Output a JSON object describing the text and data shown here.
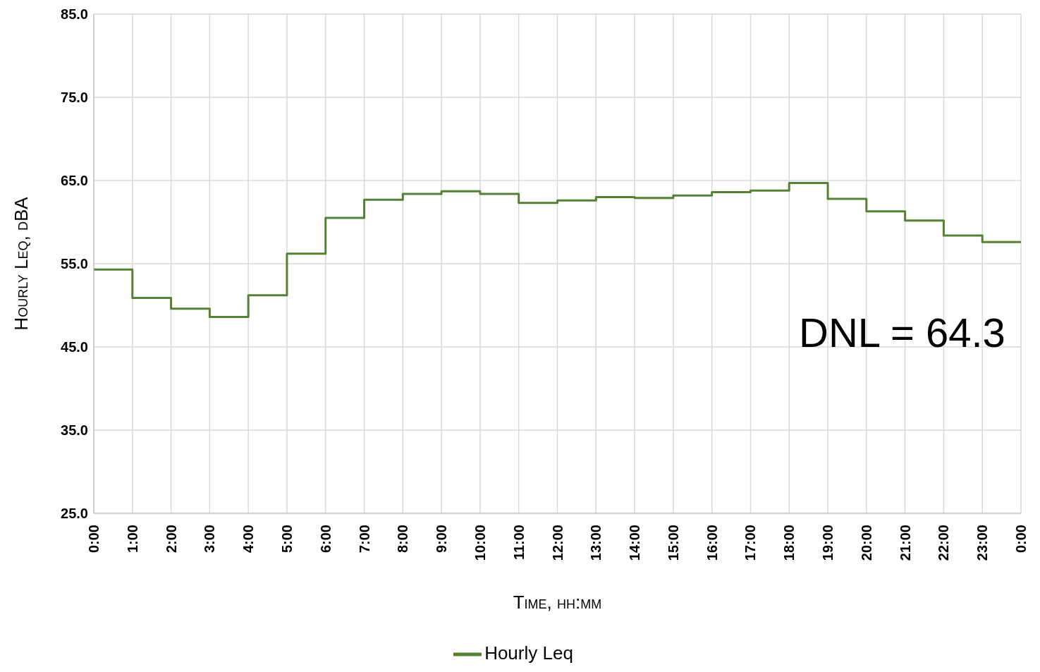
{
  "chart_data": {
    "type": "step",
    "xlabel": "Time, hh:mm",
    "ylabel": "Hourly Leq,  dBA",
    "x": [
      0,
      1,
      2,
      3,
      4,
      5,
      6,
      7,
      8,
      9,
      10,
      11,
      12,
      13,
      14,
      15,
      16,
      17,
      18,
      19,
      20,
      21,
      22,
      23,
      24
    ],
    "series": [
      {
        "name": "Hourly Leq",
        "color": "#548235",
        "values": [
          54.3,
          50.9,
          49.6,
          48.6,
          51.2,
          56.2,
          60.5,
          62.7,
          63.4,
          63.7,
          63.4,
          62.3,
          62.6,
          63.0,
          62.9,
          63.2,
          63.6,
          63.8,
          64.7,
          62.8,
          61.3,
          60.2,
          58.4,
          57.6,
          57.6
        ]
      }
    ],
    "xlim": [
      0,
      24
    ],
    "xticks": [
      {
        "value": 0,
        "label": "0:00"
      },
      {
        "value": 1,
        "label": "1:00"
      },
      {
        "value": 2,
        "label": "2:00"
      },
      {
        "value": 3,
        "label": "3:00"
      },
      {
        "value": 4,
        "label": "4:00"
      },
      {
        "value": 5,
        "label": "5:00"
      },
      {
        "value": 6,
        "label": "6:00"
      },
      {
        "value": 7,
        "label": "7:00"
      },
      {
        "value": 8,
        "label": "8:00"
      },
      {
        "value": 9,
        "label": "9:00"
      },
      {
        "value": 10,
        "label": "10:00"
      },
      {
        "value": 11,
        "label": "11:00"
      },
      {
        "value": 12,
        "label": "12:00"
      },
      {
        "value": 13,
        "label": "13:00"
      },
      {
        "value": 14,
        "label": "14:00"
      },
      {
        "value": 15,
        "label": "15:00"
      },
      {
        "value": 16,
        "label": "16:00"
      },
      {
        "value": 17,
        "label": "17:00"
      },
      {
        "value": 18,
        "label": "18:00"
      },
      {
        "value": 19,
        "label": "19:00"
      },
      {
        "value": 20,
        "label": "20:00"
      },
      {
        "value": 21,
        "label": "21:00"
      },
      {
        "value": 22,
        "label": "22:00"
      },
      {
        "value": 23,
        "label": "23:00"
      },
      {
        "value": 24,
        "label": "0:00"
      }
    ],
    "ylim": [
      25,
      85
    ],
    "yticks": [
      {
        "value": 25,
        "label": "25.0"
      },
      {
        "value": 35,
        "label": "35.0"
      },
      {
        "value": 45,
        "label": "45.0"
      },
      {
        "value": 55,
        "label": "55.0"
      },
      {
        "value": 65,
        "label": "65.0"
      },
      {
        "value": 75,
        "label": "75.0"
      },
      {
        "value": 85,
        "label": "85.0"
      }
    ],
    "grid": true,
    "legend": "bottom",
    "marker": "none",
    "line_style": "solid",
    "annotations": [
      "DNL = 64.3"
    ]
  }
}
